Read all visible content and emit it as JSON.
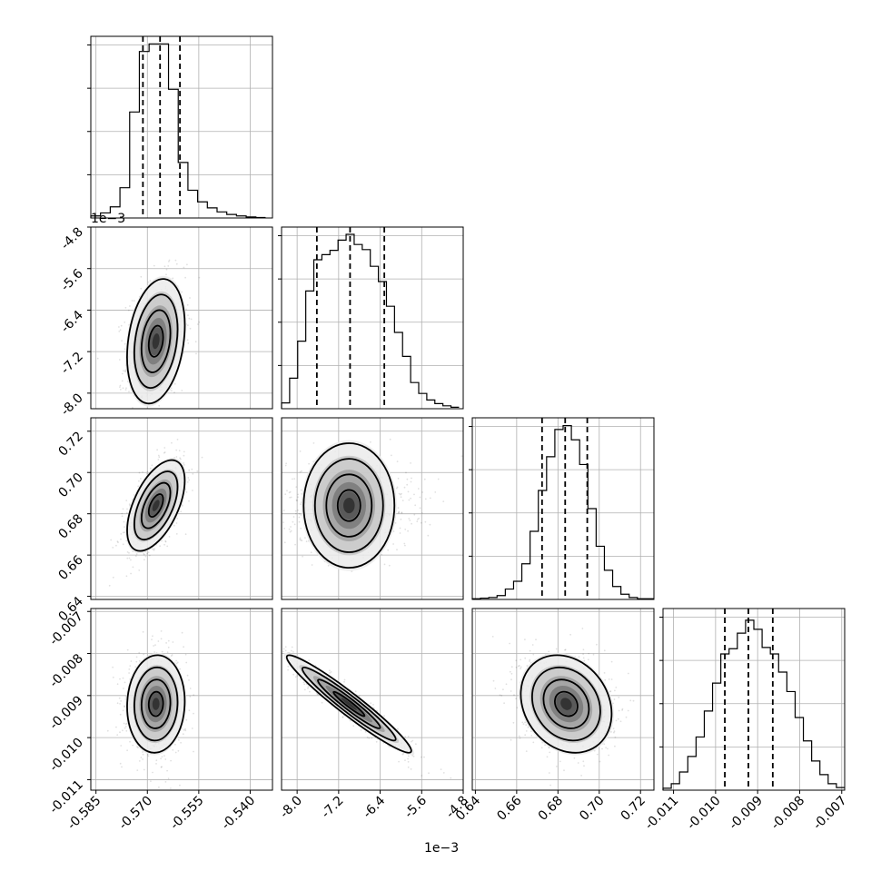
{
  "chart_data": {
    "type": "corner",
    "grid": true,
    "parameters": [
      {
        "ticks": [
          "-0.585",
          "-0.570",
          "-0.555",
          "-0.540"
        ],
        "tick_values": [
          -0.585,
          -0.57,
          -0.555,
          -0.54
        ],
        "range": [
          -0.5865,
          -0.5335
        ],
        "quantiles": [
          -0.5713,
          -0.5663,
          -0.5605
        ],
        "hist_edges": [
          -0.5865,
          -0.5355
        ],
        "hist_counts": [
          4,
          10,
          22,
          60,
          210,
          330,
          345,
          345,
          255,
          110,
          55,
          32,
          20,
          12,
          7,
          4,
          2,
          1
        ],
        "hist_ymax": 360,
        "center": -0.5675,
        "spread": 0.0042
      },
      {
        "ticks": [
          "-8.0",
          "-7.2",
          "-6.4",
          "-5.6",
          "-4.8"
        ],
        "tick_values": [
          -8.0,
          -7.2,
          -6.4,
          -5.6,
          -4.8
        ],
        "scale_label": "1e−3",
        "range": [
          -8.3,
          -4.8
        ],
        "quantiles": [
          -7.62,
          -6.98,
          -6.32
        ],
        "hist_edges": [
          -8.3,
          -4.88
        ],
        "hist_counts": [
          8,
          42,
          93,
          162,
          205,
          212,
          218,
          232,
          240,
          226,
          219,
          196,
          175,
          141,
          105,
          72,
          36,
          21,
          12,
          7,
          4,
          2
        ],
        "hist_ymax": 250,
        "center": -7.0,
        "spread": 0.6
      },
      {
        "ticks": [
          "0.64",
          "0.66",
          "0.68",
          "0.70",
          "0.72"
        ],
        "tick_values": [
          0.64,
          0.66,
          0.68,
          0.7,
          0.72
        ],
        "range": [
          0.6385,
          0.7265
        ],
        "quantiles": [
          0.6723,
          0.6835,
          0.6942
        ],
        "hist_edges": [
          0.6385,
          0.7265
        ],
        "hist_counts": [
          1,
          2,
          3,
          6,
          16,
          28,
          55,
          105,
          168,
          220,
          262,
          268,
          246,
          208,
          140,
          82,
          45,
          20,
          8,
          3,
          1,
          1
        ],
        "hist_ymax": 280,
        "center": 0.684,
        "spread": 0.011
      },
      {
        "ticks": [
          "-0.011",
          "-0.010",
          "-0.009",
          "-0.008",
          "-0.007"
        ],
        "tick_values": [
          -0.011,
          -0.01,
          -0.009,
          -0.008,
          -0.007
        ],
        "range": [
          -0.01125,
          -0.00693
        ],
        "quantiles": [
          -0.00978,
          -0.00922,
          -0.00864
        ],
        "hist_edges": [
          -0.01125,
          -0.00693
        ],
        "hist_counts": [
          3,
          10,
          28,
          52,
          82,
          122,
          165,
          210,
          218,
          242,
          262,
          248,
          220,
          210,
          182,
          152,
          112,
          76,
          45,
          24,
          10,
          4
        ],
        "hist_ymax": 280,
        "center": -0.0092,
        "spread": 0.00058
      }
    ],
    "correlations": {
      "1_0": 0.25,
      "2_0": 0.55,
      "2_1": 0.0,
      "3_0": 0.05,
      "3_1": -0.96,
      "3_2": -0.2
    }
  }
}
